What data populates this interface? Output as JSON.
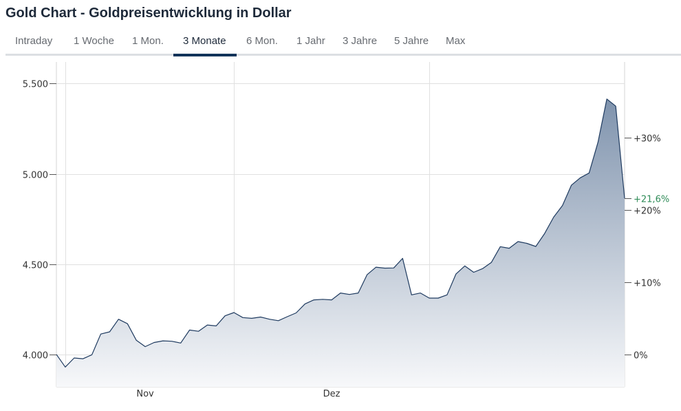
{
  "header": {
    "title": "Gold Chart - Goldpreisentwicklung in Dollar"
  },
  "tabs": [
    {
      "label": "Intraday",
      "active": false
    },
    {
      "label": "1 Woche",
      "active": false
    },
    {
      "label": "1 Mon.",
      "active": false
    },
    {
      "label": "3 Monate",
      "active": true
    },
    {
      "label": "6 Mon.",
      "active": false
    },
    {
      "label": "1 Jahr",
      "active": false
    },
    {
      "label": "3 Jahre",
      "active": false
    },
    {
      "label": "5 Jahre",
      "active": false
    },
    {
      "label": "Max",
      "active": false
    }
  ],
  "colors": {
    "line": "#1e3a5f",
    "fill_top": "#7f93ad",
    "fill_bottom": "#f7f8fa",
    "grid": "#e0e0e0",
    "current_pct": "#2e8b57"
  },
  "chart_data": {
    "type": "area",
    "title": "",
    "xlabel": "",
    "ylabel": "",
    "ylim": [
      3820,
      5620
    ],
    "y_ticks": [
      4000,
      4500,
      5000,
      5500
    ],
    "y_tick_labels": [
      "4.000",
      "4.500",
      "5.000",
      "5.500"
    ],
    "x_tick_labels": [
      {
        "label": "Nov",
        "index": 10
      },
      {
        "label": "Dez",
        "index": 31
      }
    ],
    "pct_base": 4000,
    "pct_ticks": [
      0,
      10,
      20,
      30
    ],
    "pct_tick_labels": [
      "0%",
      "+10%",
      "+20%",
      "+30%"
    ],
    "current_pct_label": "+21,6%",
    "current_pct": 21.6,
    "grid": true,
    "values": [
      4000,
      3930,
      3980,
      3976,
      3998,
      4113,
      4125,
      4195,
      4170,
      4078,
      4043,
      4066,
      4075,
      4073,
      4063,
      4135,
      4128,
      4163,
      4158,
      4214,
      4232,
      4204,
      4200,
      4207,
      4195,
      4187,
      4209,
      4230,
      4280,
      4302,
      4305,
      4302,
      4340,
      4332,
      4340,
      4442,
      4483,
      4478,
      4479,
      4532,
      4330,
      4340,
      4312,
      4312,
      4330,
      4445,
      4490,
      4455,
      4475,
      4510,
      4597,
      4588,
      4625,
      4615,
      4598,
      4670,
      4760,
      4825,
      4937,
      4978,
      5005,
      5175,
      5415,
      5375,
      4865
    ]
  }
}
